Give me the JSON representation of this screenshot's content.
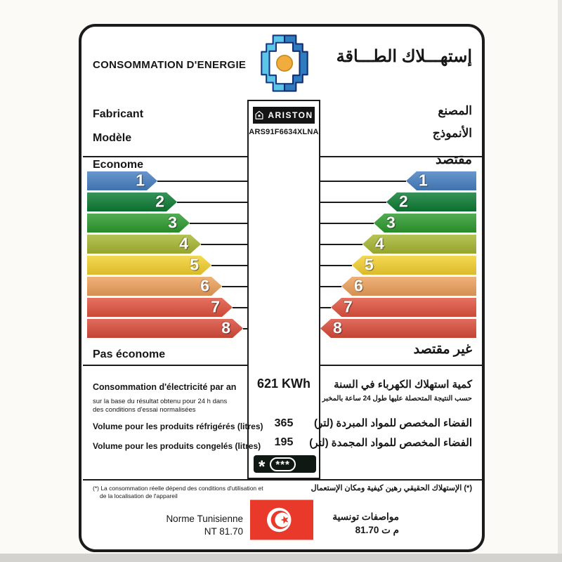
{
  "header": {
    "title_fr": "CONSOMMATION D'ENERGIE",
    "title_ar": "إستهـــلاك الطـــاقة",
    "logo": "anme-energy-agency-logo"
  },
  "manufacturer": {
    "label_fr": "Fabricant",
    "label_ar": "المصنع"
  },
  "model": {
    "label_fr": "Modèle",
    "label_ar": "الأنموذج"
  },
  "brand": {
    "name": "ARISTON",
    "model_code": "ARS91F6634XLNA"
  },
  "scale": {
    "economic_fr": "Econome",
    "economic_ar": "مقتصد",
    "not_economic_fr": "Pas économe",
    "not_economic_ar": "غير مقتصد",
    "selected": "3",
    "selected_color": "#1e8c3c",
    "levels": [
      {
        "n": "1",
        "color": "#477fc1"
      },
      {
        "n": "2",
        "color": "#0c7b33"
      },
      {
        "n": "3",
        "color": "#2d9a2e"
      },
      {
        "n": "4",
        "color": "#a6b732"
      },
      {
        "n": "5",
        "color": "#f3d02e"
      },
      {
        "n": "6",
        "color": "#eca05b"
      },
      {
        "n": "7",
        "color": "#e1523e"
      },
      {
        "n": "8",
        "color": "#d94b3a"
      }
    ]
  },
  "rows": {
    "consumption": {
      "label_fr": "Consommation d'électricité par an",
      "note_fr_line1": "sur la base du résultat obtenu pour 24 h dans",
      "note_fr_line2": "des conditions d'essai normalisées",
      "value": "621 KWh",
      "label_ar": "كمية استهلاك الكهرباء في السنة",
      "note_ar": "حسب النتيجة المتحصلة عليها طول 24 ساعة بالمخبر"
    },
    "refrigerated": {
      "label_fr": "Volume pour les produits réfrigérés (litres)",
      "value": "365",
      "label_ar": "الفضاء المخصص للمواد المبردة (لتر)"
    },
    "frozen": {
      "label_fr": "Volume pour les produits congelés (litres)",
      "value": "195",
      "label_ar": "الفضاء المخصص للمواد المجمدة (لتر)",
      "stars_single": "*",
      "stars_triple": "***"
    }
  },
  "footnote": {
    "fr_line1": "(*) La consommation réelle dépend des conditions d'utilisation et",
    "fr_line2": "de la localisation de l'appareil",
    "ar": "(*) الإستهلاك الحقيقي رهين كيفية ومكان الإستعمال"
  },
  "standard": {
    "fr_line1": "Norme Tunisienne",
    "fr_line2": "NT 81.70",
    "ar_line1": "مواصفات تونسية",
    "ar_line2": "م ت 81.70",
    "flag": "tunisia-flag"
  }
}
